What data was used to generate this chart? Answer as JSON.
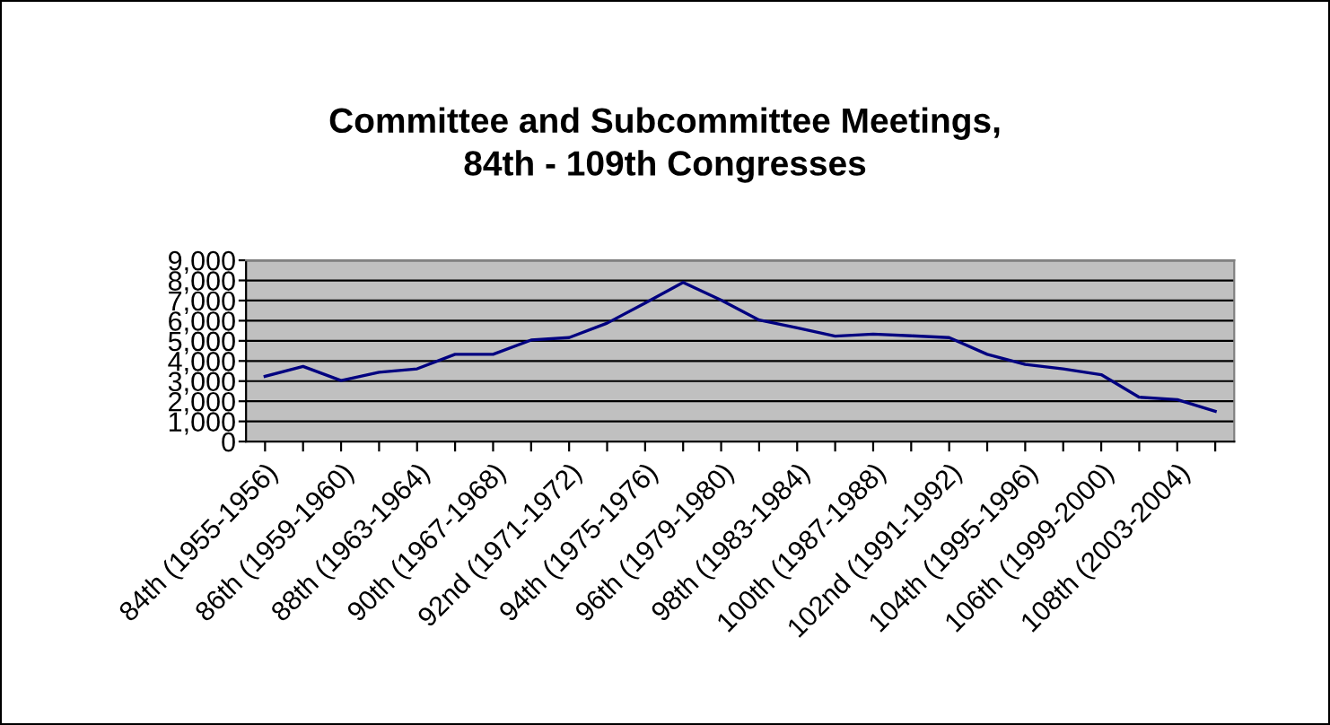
{
  "chart_data": {
    "type": "line",
    "title": "Committee and Subcommittee Meetings,\n84th - 109th Congresses",
    "categories": [
      "84th (1955-1956)",
      null,
      "86th (1959-1960)",
      null,
      "88th (1963-1964)",
      null,
      "90th (1967-1968)",
      null,
      "92nd (1971-1972)",
      null,
      "94th (1975-1976)",
      null,
      "96th (1979-1980)",
      null,
      "98th (1983-1984)",
      null,
      "100th (1987-1988)",
      null,
      "102nd (1991-1992)",
      null,
      "104th (1995-1996)",
      null,
      "106th (1999-2000)",
      null,
      "108th (2003-2004)",
      null
    ],
    "series": [
      {
        "color": "#000080",
        "values": [
          3240,
          3730,
          3030,
          3440,
          3610,
          4330,
          4330,
          5040,
          5160,
          5880,
          6880,
          7900,
          7020,
          6030,
          5640,
          5230,
          5330,
          5250,
          5160,
          4330,
          3830,
          3610,
          3320,
          2200,
          2080,
          1500
        ]
      }
    ],
    "ylim": [
      0,
      9000
    ],
    "yticks": [
      0,
      {
        "value": 1000,
        "label": "1,000"
      },
      {
        "value": 2000,
        "label": "2,000"
      },
      {
        "value": 3000,
        "label": "3,000"
      },
      {
        "value": 4000,
        "label": "4,000"
      },
      {
        "value": 5000,
        "label": "5,000"
      },
      {
        "value": 6000,
        "label": "6,000"
      },
      {
        "value": 7000,
        "label": "7,000"
      },
      {
        "value": 8000,
        "label": "8,000"
      },
      {
        "value": 9000,
        "label": "9,000"
      }
    ],
    "grid": "y",
    "marker": "none",
    "line_style": "solid"
  }
}
